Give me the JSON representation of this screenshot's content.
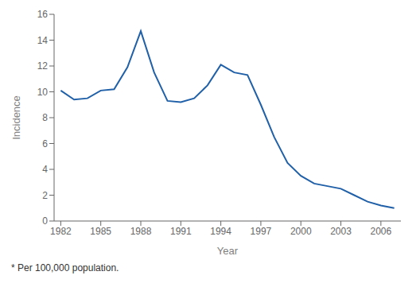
{
  "chart_data": {
    "type": "line",
    "x_label": "Year",
    "y_label": "Incidence",
    "x": [
      1982,
      1983,
      1984,
      1985,
      1986,
      1987,
      1988,
      1989,
      1990,
      1991,
      1992,
      1993,
      1994,
      1995,
      1996,
      1997,
      1998,
      1999,
      2000,
      2001,
      2002,
      2003,
      2004,
      2005,
      2006,
      2007
    ],
    "values": [
      10.1,
      9.4,
      9.5,
      10.1,
      10.2,
      11.9,
      14.7,
      11.5,
      9.3,
      9.2,
      9.5,
      10.5,
      12.1,
      11.5,
      11.3,
      9.0,
      6.5,
      4.5,
      3.5,
      2.9,
      2.7,
      2.5,
      2.0,
      1.5,
      1.2,
      1.0
    ],
    "color": "#2060a8",
    "xlim": [
      1981.5,
      2007.5
    ],
    "ylim": [
      0,
      16
    ],
    "xticks": [
      1982,
      1985,
      1988,
      1991,
      1994,
      1997,
      2000,
      2003,
      2006
    ],
    "yticks": [
      0,
      2,
      4,
      6,
      8,
      10,
      12,
      14,
      16
    ],
    "footnote": "* Per 100,000 population."
  }
}
